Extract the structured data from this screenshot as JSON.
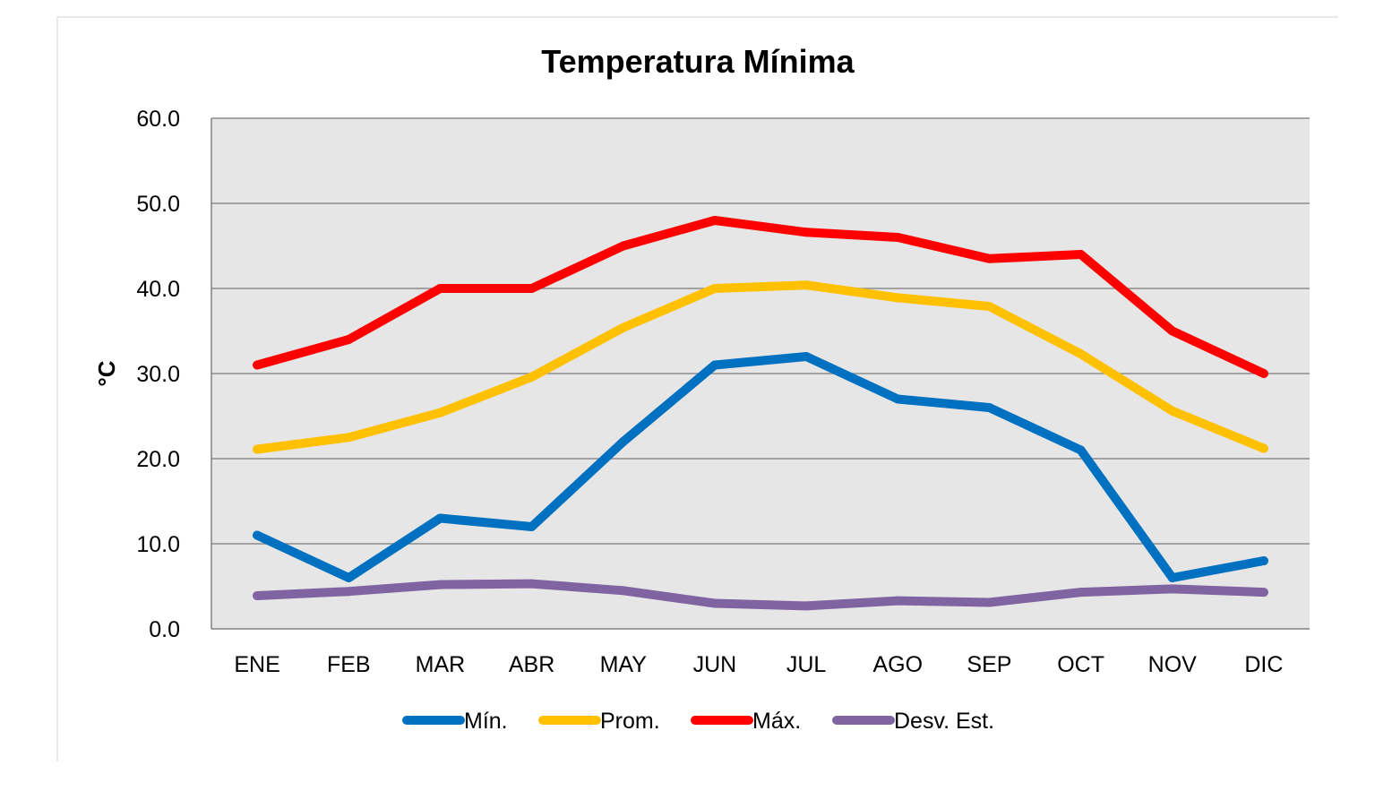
{
  "chart_data": {
    "type": "line",
    "title": "Temperatura Mínima",
    "xlabel": "",
    "ylabel": "°C",
    "ylim": [
      0,
      60
    ],
    "yticks": [
      "0.0",
      "10.0",
      "20.0",
      "30.0",
      "40.0",
      "50.0",
      "60.0"
    ],
    "categories": [
      "ENE",
      "FEB",
      "MAR",
      "ABR",
      "MAY",
      "JUN",
      "JUL",
      "AGO",
      "SEP",
      "OCT",
      "NOV",
      "DIC"
    ],
    "grid": true,
    "legend_position": "bottom",
    "series": [
      {
        "name": "Mín.",
        "color": "#0070C0",
        "values": [
          11.0,
          6.0,
          13.0,
          12.0,
          22.0,
          31.0,
          32.0,
          27.0,
          26.0,
          21.0,
          6.0,
          8.0
        ]
      },
      {
        "name": "Prom.",
        "color": "#FFC000",
        "values": [
          21.1,
          22.5,
          25.4,
          29.6,
          35.4,
          40.0,
          40.4,
          38.9,
          37.9,
          32.3,
          25.6,
          21.2
        ]
      },
      {
        "name": "Máx.",
        "color": "#FF0000",
        "values": [
          31.0,
          34.0,
          40.0,
          40.0,
          45.0,
          48.0,
          46.6,
          46.0,
          43.5,
          44.0,
          35.0,
          30.0
        ]
      },
      {
        "name": "Desv. Est.",
        "color": "#8064A2",
        "values": [
          3.9,
          4.4,
          5.2,
          5.3,
          4.5,
          3.0,
          2.7,
          3.3,
          3.1,
          4.3,
          4.7,
          4.3
        ]
      }
    ]
  }
}
